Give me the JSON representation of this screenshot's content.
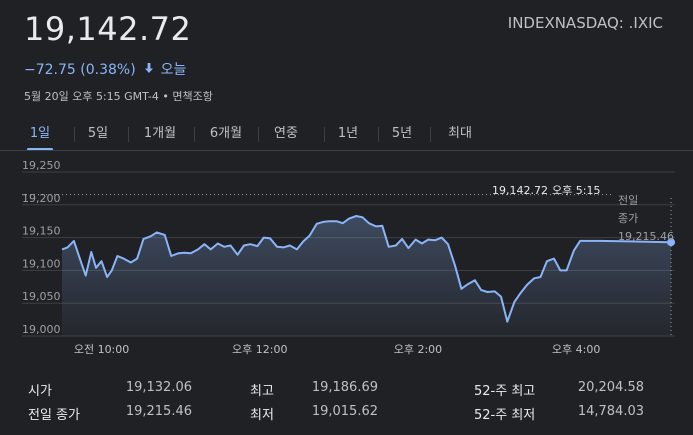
{
  "header": {
    "price": "19,142.72",
    "ticker": "INDEXNASDAQ: .IXIC",
    "change": "−72.75 (0.38%)",
    "change_arrow_icon": "arrow-down-icon",
    "change_period": "오늘",
    "timestamp": "5월 20일 오후 5:15 GMT-4 • 면책조항",
    "accent_color": "#8ab4f8"
  },
  "tabs": [
    {
      "label": "1일",
      "active": true
    },
    {
      "label": "5일",
      "active": false
    },
    {
      "label": "1개월",
      "active": false
    },
    {
      "label": "6개월",
      "active": false
    },
    {
      "label": "연중",
      "active": false
    },
    {
      "label": "1년",
      "active": false
    },
    {
      "label": "5년",
      "active": false
    },
    {
      "label": "최대",
      "active": false
    }
  ],
  "chart_data": {
    "type": "line",
    "y_ticks": [
      "19,250",
      "19,200",
      "19,150",
      "19,100",
      "19,050",
      "19,000"
    ],
    "ylim": [
      19000,
      19250
    ],
    "x_ticks": [
      "오전 10:00",
      "오후 12:00",
      "오후 2:00",
      "오후 4:00"
    ],
    "x_tick_hours": [
      10,
      12,
      14,
      16
    ],
    "xlim": [
      9.5,
      17.25
    ],
    "series": [
      {
        "color": "#8ab4f8",
        "x": [
          9.5,
          9.57,
          9.65,
          9.72,
          9.8,
          9.87,
          9.93,
          10.0,
          10.07,
          10.13,
          10.2,
          10.28,
          10.37,
          10.45,
          10.53,
          10.62,
          10.7,
          10.8,
          10.88,
          10.97,
          11.05,
          11.13,
          11.22,
          11.3,
          11.38,
          11.47,
          11.55,
          11.63,
          11.72,
          11.8,
          11.88,
          11.97,
          12.05,
          12.13,
          12.22,
          12.3,
          12.38,
          12.47,
          12.55,
          12.63,
          12.72,
          12.8,
          12.88,
          12.97,
          13.05,
          13.13,
          13.22,
          13.3,
          13.38,
          13.47,
          13.55,
          13.63,
          13.72,
          13.8,
          13.88,
          13.97,
          14.05,
          14.13,
          14.22,
          14.3,
          14.38,
          14.47,
          14.55,
          14.63,
          14.72,
          14.8,
          14.88,
          14.97,
          15.05,
          15.13,
          15.22,
          15.3,
          15.38,
          15.47,
          15.55,
          15.63,
          15.72,
          15.8,
          15.88,
          15.97,
          16.05,
          16.13,
          16.22,
          16.3,
          17.2
        ],
        "values": [
          19132,
          19135,
          19145,
          19120,
          19092,
          19128,
          19104,
          19114,
          19090,
          19100,
          19122,
          19118,
          19112,
          19118,
          19148,
          19152,
          19158,
          19154,
          19122,
          19126,
          19127,
          19126,
          19132,
          19140,
          19132,
          19141,
          19136,
          19138,
          19124,
          19138,
          19140,
          19137,
          19150,
          19149,
          19136,
          19135,
          19138,
          19132,
          19144,
          19153,
          19171,
          19174,
          19175,
          19175,
          19172,
          19179,
          19183,
          19181,
          19172,
          19167,
          19168,
          19136,
          19138,
          19148,
          19134,
          19147,
          19141,
          19147,
          19146,
          19150,
          19140,
          19107,
          19072,
          19079,
          19085,
          19070,
          19067,
          19068,
          19060,
          19022,
          19052,
          19066,
          19078,
          19088,
          19090,
          19114,
          19118,
          19100,
          19100,
          19130,
          19145,
          19145,
          19145,
          19145,
          19143
        ]
      }
    ],
    "prev_close_label": "전일\n종가",
    "prev_close_value": 19215.46,
    "prev_close_text": "19,215.46",
    "annotation_price": "19,142.72",
    "annotation_time": "오후 5:15",
    "line_color": "#8ab4f8",
    "grid": true
  },
  "stats": [
    {
      "label": "시가",
      "value": "19,132.06"
    },
    {
      "label": "최고",
      "value": "19,186.69"
    },
    {
      "label": "52-주 최고",
      "value": "20,204.58"
    },
    {
      "label": "전일 종가",
      "value": "19,215.46"
    },
    {
      "label": "최저",
      "value": "19,015.62"
    },
    {
      "label": "52-주 최저",
      "value": "14,784.03"
    }
  ]
}
